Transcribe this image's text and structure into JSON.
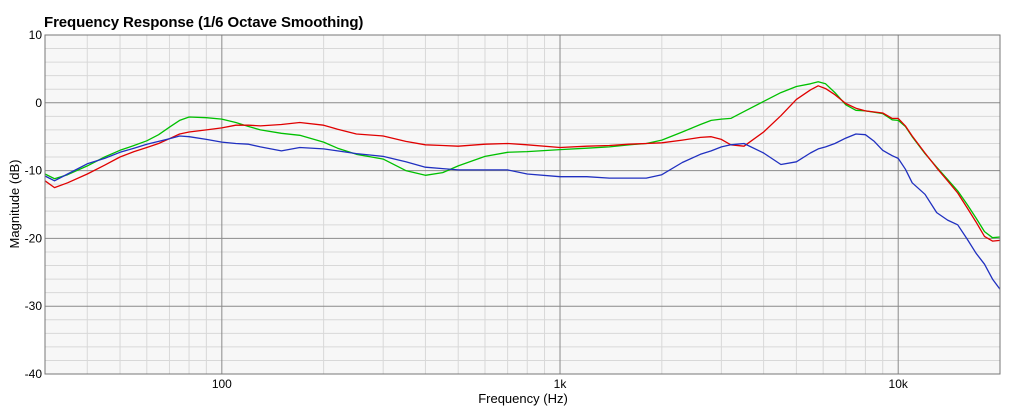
{
  "chart_data": {
    "type": "line",
    "title": "Frequency Response (1/6 Octave Smoothing)",
    "xlabel": "Frequency (Hz)",
    "ylabel": "Magnitude (dB)",
    "x_scale": "log",
    "xlim": [
      30,
      20000
    ],
    "ylim": [
      -40,
      10
    ],
    "x_ticks": [
      {
        "value": 100,
        "label": "100"
      },
      {
        "value": 1000,
        "label": "1k"
      },
      {
        "value": 10000,
        "label": "10k"
      }
    ],
    "y_ticks": [
      {
        "value": 10,
        "label": "10"
      },
      {
        "value": 0,
        "label": "0"
      },
      {
        "value": -10,
        "label": "-10"
      },
      {
        "value": -20,
        "label": "-20"
      },
      {
        "value": -30,
        "label": "-30"
      },
      {
        "value": -40,
        "label": "-40"
      }
    ],
    "grid": true,
    "legend": "none",
    "series": [
      {
        "color": "#00c000",
        "points": [
          [
            30,
            -10.5
          ],
          [
            32,
            -11.2
          ],
          [
            35,
            -10.6
          ],
          [
            40,
            -9.3
          ],
          [
            45,
            -8.0
          ],
          [
            50,
            -7.0
          ],
          [
            55,
            -6.3
          ],
          [
            60,
            -5.6
          ],
          [
            65,
            -4.7
          ],
          [
            70,
            -3.6
          ],
          [
            75,
            -2.6
          ],
          [
            80,
            -2.1
          ],
          [
            90,
            -2.2
          ],
          [
            100,
            -2.4
          ],
          [
            110,
            -2.9
          ],
          [
            120,
            -3.5
          ],
          [
            130,
            -4.0
          ],
          [
            150,
            -4.5
          ],
          [
            170,
            -4.8
          ],
          [
            200,
            -5.8
          ],
          [
            220,
            -6.7
          ],
          [
            250,
            -7.6
          ],
          [
            300,
            -8.3
          ],
          [
            350,
            -10.0
          ],
          [
            400,
            -10.7
          ],
          [
            450,
            -10.3
          ],
          [
            500,
            -9.3
          ],
          [
            600,
            -7.9
          ],
          [
            700,
            -7.3
          ],
          [
            800,
            -7.2
          ],
          [
            1000,
            -6.9
          ],
          [
            1200,
            -6.7
          ],
          [
            1400,
            -6.5
          ],
          [
            1600,
            -6.2
          ],
          [
            1800,
            -6.0
          ],
          [
            2000,
            -5.5
          ],
          [
            2300,
            -4.3
          ],
          [
            2600,
            -3.2
          ],
          [
            2800,
            -2.6
          ],
          [
            3000,
            -2.4
          ],
          [
            3200,
            -2.3
          ],
          [
            3500,
            -1.3
          ],
          [
            4000,
            0.2
          ],
          [
            4500,
            1.5
          ],
          [
            5000,
            2.4
          ],
          [
            5500,
            2.8
          ],
          [
            5800,
            3.1
          ],
          [
            6100,
            2.8
          ],
          [
            6500,
            1.5
          ],
          [
            7000,
            -0.3
          ],
          [
            7500,
            -1.1
          ],
          [
            8000,
            -1.2
          ],
          [
            9000,
            -1.6
          ],
          [
            9600,
            -2.5
          ],
          [
            10000,
            -2.6
          ],
          [
            10500,
            -3.5
          ],
          [
            11000,
            -5.0
          ],
          [
            12000,
            -7.5
          ],
          [
            13000,
            -9.5
          ],
          [
            14000,
            -11.3
          ],
          [
            15000,
            -13.0
          ],
          [
            16000,
            -15.0
          ],
          [
            17000,
            -17.0
          ],
          [
            18000,
            -19.0
          ],
          [
            19000,
            -19.9
          ],
          [
            20000,
            -19.8
          ]
        ]
      },
      {
        "color": "#e00000",
        "points": [
          [
            30,
            -11.5
          ],
          [
            32,
            -12.5
          ],
          [
            35,
            -11.8
          ],
          [
            40,
            -10.5
          ],
          [
            45,
            -9.2
          ],
          [
            50,
            -8.0
          ],
          [
            55,
            -7.2
          ],
          [
            60,
            -6.6
          ],
          [
            65,
            -6.0
          ],
          [
            70,
            -5.3
          ],
          [
            75,
            -4.6
          ],
          [
            80,
            -4.3
          ],
          [
            90,
            -4.0
          ],
          [
            100,
            -3.7
          ],
          [
            110,
            -3.3
          ],
          [
            120,
            -3.3
          ],
          [
            130,
            -3.4
          ],
          [
            150,
            -3.2
          ],
          [
            170,
            -2.9
          ],
          [
            200,
            -3.3
          ],
          [
            220,
            -3.9
          ],
          [
            250,
            -4.6
          ],
          [
            300,
            -4.9
          ],
          [
            350,
            -5.7
          ],
          [
            400,
            -6.2
          ],
          [
            450,
            -6.3
          ],
          [
            500,
            -6.4
          ],
          [
            600,
            -6.1
          ],
          [
            700,
            -6.0
          ],
          [
            800,
            -6.2
          ],
          [
            1000,
            -6.6
          ],
          [
            1200,
            -6.4
          ],
          [
            1400,
            -6.3
          ],
          [
            1600,
            -6.1
          ],
          [
            1800,
            -6.0
          ],
          [
            2000,
            -5.9
          ],
          [
            2300,
            -5.5
          ],
          [
            2600,
            -5.1
          ],
          [
            2800,
            -5.0
          ],
          [
            3000,
            -5.4
          ],
          [
            3200,
            -6.2
          ],
          [
            3500,
            -6.4
          ],
          [
            4000,
            -4.3
          ],
          [
            4500,
            -1.9
          ],
          [
            5000,
            0.5
          ],
          [
            5500,
            1.9
          ],
          [
            5800,
            2.5
          ],
          [
            6100,
            2.1
          ],
          [
            6500,
            1.2
          ],
          [
            7000,
            -0.1
          ],
          [
            7500,
            -0.8
          ],
          [
            8000,
            -1.2
          ],
          [
            9000,
            -1.5
          ],
          [
            9600,
            -2.3
          ],
          [
            10000,
            -2.3
          ],
          [
            10500,
            -3.4
          ],
          [
            11000,
            -4.9
          ],
          [
            12000,
            -7.4
          ],
          [
            13000,
            -9.6
          ],
          [
            14000,
            -11.5
          ],
          [
            15000,
            -13.3
          ],
          [
            16000,
            -15.5
          ],
          [
            17000,
            -17.6
          ],
          [
            18000,
            -19.7
          ],
          [
            19000,
            -20.4
          ],
          [
            20000,
            -20.3
          ]
        ]
      },
      {
        "color": "#2030c0",
        "points": [
          [
            30,
            -10.8
          ],
          [
            32,
            -11.5
          ],
          [
            35,
            -10.5
          ],
          [
            40,
            -9.0
          ],
          [
            45,
            -8.2
          ],
          [
            50,
            -7.3
          ],
          [
            55,
            -6.7
          ],
          [
            60,
            -6.1
          ],
          [
            65,
            -5.7
          ],
          [
            70,
            -5.3
          ],
          [
            75,
            -4.9
          ],
          [
            80,
            -5.0
          ],
          [
            90,
            -5.4
          ],
          [
            100,
            -5.8
          ],
          [
            110,
            -6.0
          ],
          [
            120,
            -6.1
          ],
          [
            130,
            -6.5
          ],
          [
            150,
            -7.1
          ],
          [
            170,
            -6.6
          ],
          [
            200,
            -6.8
          ],
          [
            220,
            -7.1
          ],
          [
            250,
            -7.5
          ],
          [
            300,
            -7.9
          ],
          [
            350,
            -8.7
          ],
          [
            400,
            -9.5
          ],
          [
            450,
            -9.7
          ],
          [
            500,
            -9.9
          ],
          [
            600,
            -9.9
          ],
          [
            700,
            -9.9
          ],
          [
            800,
            -10.5
          ],
          [
            1000,
            -10.9
          ],
          [
            1200,
            -10.9
          ],
          [
            1400,
            -11.1
          ],
          [
            1600,
            -11.1
          ],
          [
            1800,
            -11.1
          ],
          [
            2000,
            -10.6
          ],
          [
            2300,
            -8.8
          ],
          [
            2600,
            -7.6
          ],
          [
            2800,
            -7.1
          ],
          [
            3000,
            -6.5
          ],
          [
            3200,
            -6.2
          ],
          [
            3500,
            -6.0
          ],
          [
            4000,
            -7.4
          ],
          [
            4500,
            -9.1
          ],
          [
            5000,
            -8.7
          ],
          [
            5500,
            -7.4
          ],
          [
            5800,
            -6.8
          ],
          [
            6100,
            -6.5
          ],
          [
            6500,
            -6.0
          ],
          [
            7000,
            -5.2
          ],
          [
            7500,
            -4.6
          ],
          [
            8000,
            -4.7
          ],
          [
            8500,
            -5.7
          ],
          [
            9000,
            -7.0
          ],
          [
            9600,
            -7.8
          ],
          [
            10000,
            -8.2
          ],
          [
            10500,
            -9.8
          ],
          [
            11000,
            -11.8
          ],
          [
            12000,
            -13.5
          ],
          [
            13000,
            -16.2
          ],
          [
            14000,
            -17.3
          ],
          [
            15000,
            -18.0
          ],
          [
            16000,
            -20.1
          ],
          [
            17000,
            -22.2
          ],
          [
            18000,
            -23.8
          ],
          [
            19000,
            -26.0
          ],
          [
            20000,
            -27.5
          ]
        ]
      }
    ]
  }
}
